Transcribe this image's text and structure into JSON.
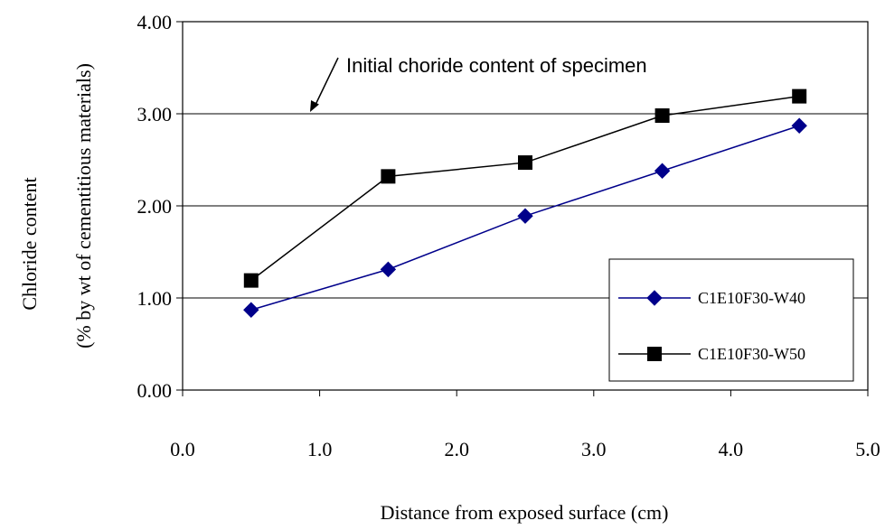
{
  "chart_data": {
    "type": "line",
    "title": "",
    "xlabel": "Distance from exposed surface (cm)",
    "ylabel": "Chloride content",
    "ylabel2": "(% by wt of cementitious materials)",
    "xlim": [
      0,
      5
    ],
    "ylim": [
      0,
      4
    ],
    "x_ticks": [
      "0.0",
      "1.0",
      "2.0",
      "3.0",
      "4.0",
      "5.0"
    ],
    "y_ticks": [
      "0.00",
      "1.00",
      "2.00",
      "3.00",
      "4.00"
    ],
    "grid": "horizontal",
    "legend_position": "bottom-right",
    "series": [
      {
        "name": "C1E10F30-W40",
        "color": "#00008B",
        "marker": "diamond",
        "x": [
          0.5,
          1.5,
          2.5,
          3.5,
          4.5
        ],
        "y": [
          0.87,
          1.31,
          1.89,
          2.38,
          2.87
        ]
      },
      {
        "name": "C1E10F30-W50",
        "color": "#000000",
        "marker": "square",
        "x": [
          0.5,
          1.5,
          2.5,
          3.5,
          4.5
        ],
        "y": [
          1.19,
          2.32,
          2.47,
          2.98,
          3.19
        ]
      }
    ],
    "annotation": {
      "text": "Initial choride content of specimen",
      "arrow_target_x": 0.93,
      "arrow_target_y": 3.0
    }
  }
}
